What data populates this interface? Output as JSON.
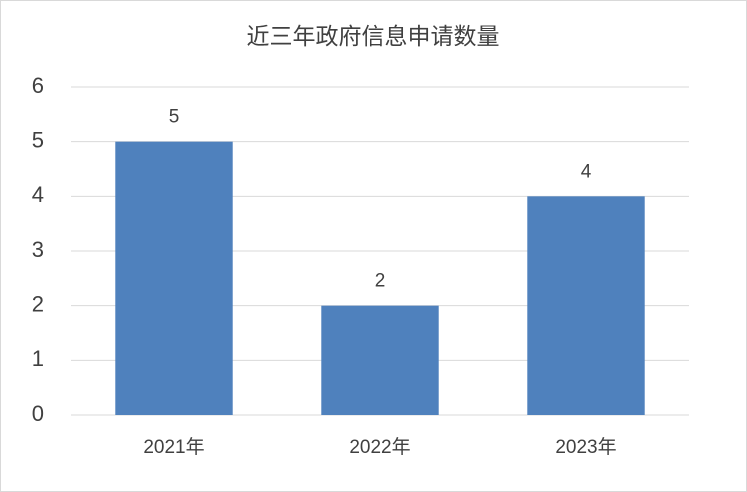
{
  "chart_data": {
    "type": "bar",
    "title": "近三年政府信息申请数量",
    "categories": [
      "2021年",
      "2022年",
      "2023年"
    ],
    "values": [
      5,
      2,
      4
    ],
    "color": "#4f81bd",
    "ylim": [
      0,
      6
    ],
    "yticks": [
      0,
      1,
      2,
      3,
      4,
      5,
      6
    ],
    "grid": true,
    "data_labels": true
  }
}
